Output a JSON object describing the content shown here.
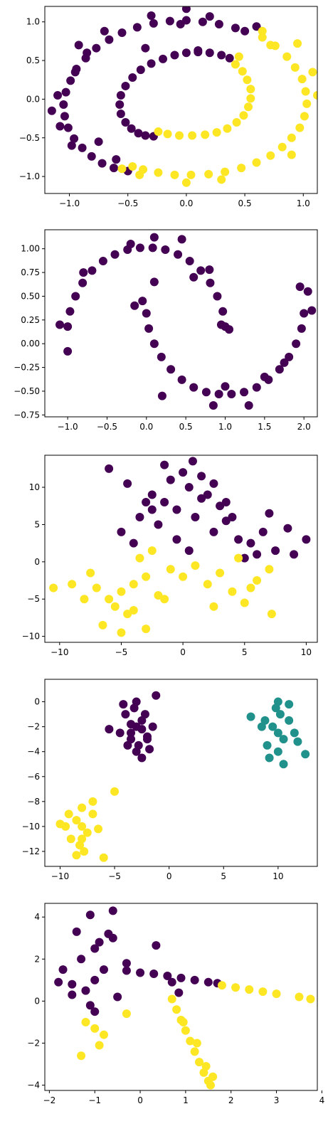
{
  "colors": {
    "class_0": "#440154",
    "class_1": "#21918c",
    "class_2": "#fde725"
  },
  "chart_data": [
    {
      "type": "scatter",
      "shape": "circles",
      "title": "",
      "xlabel": "",
      "ylabel": "",
      "grid": false,
      "xlim": [
        -1.21,
        1.12
      ],
      "ylim": [
        -1.22,
        1.2
      ],
      "xticks": [
        -1.0,
        -0.5,
        0.0,
        0.5,
        1.0
      ],
      "xtick_labels": [
        "−1.0",
        "−0.5",
        "0.0",
        "0.5",
        "1.0"
      ],
      "yticks": [
        -1.0,
        -0.5,
        0.0,
        0.5,
        1.0
      ],
      "ytick_labels": [
        "−1.0",
        "−0.5",
        "0.0",
        "0.5",
        "1.0"
      ],
      "series": [
        {
          "class": 0,
          "color": "#440154",
          "x": [
            0.5,
            0.42,
            0.28,
            0.14,
            0.0,
            -0.14,
            -0.28,
            -0.42,
            -0.55,
            -0.66,
            -0.77,
            -0.86,
            -0.94,
            -0.99,
            -1.03,
            -1.05,
            -1.04,
            -1.01,
            -0.96,
            -0.89,
            -0.81,
            -0.72,
            -0.62,
            -0.5,
            0.37,
            0.3,
            0.2,
            0.1,
            0.0,
            -0.1,
            -0.2,
            -0.3,
            -0.39,
            -0.46,
            -0.52,
            -0.56,
            -0.57,
            -0.56,
            -0.52,
            -0.47,
            -0.41,
            -0.35,
            -0.28,
            0.6,
            0.0,
            -0.85,
            -0.7,
            -0.3,
            0.2,
            -1.1,
            -1.15,
            -0.98,
            -0.75,
            -0.95,
            -0.6,
            -0.35,
            0.1,
            -0.05,
            -1.08,
            -0.92
          ],
          "y": [
            0.88,
            0.92,
            0.97,
            1.0,
            1.02,
            1.01,
            0.98,
            0.93,
            0.86,
            0.77,
            0.66,
            0.53,
            0.39,
            0.24,
            0.09,
            -0.07,
            -0.22,
            -0.37,
            -0.51,
            -0.63,
            -0.74,
            -0.83,
            -0.89,
            -0.93,
            0.53,
            0.57,
            0.6,
            0.61,
            0.6,
            0.57,
            0.52,
            0.46,
            0.38,
            0.28,
            0.17,
            0.05,
            -0.07,
            -0.19,
            -0.3,
            -0.38,
            -0.44,
            -0.47,
            -0.48,
            0.94,
            1.17,
            0.6,
            0.88,
            1.08,
            1.07,
            0.05,
            -0.15,
            -0.6,
            -0.55,
            0.35,
            -0.78,
            0.66,
            0.63,
            0.97,
            -0.35,
            0.7
          ]
        },
        {
          "class": 2,
          "color": "#fde725",
          "x": [
            0.65,
            0.76,
            0.86,
            0.93,
            0.99,
            1.02,
            1.03,
            1.01,
            0.97,
            0.9,
            0.82,
            0.72,
            0.6,
            0.47,
            0.33,
            0.19,
            0.04,
            -0.1,
            -0.24,
            -0.37,
            -0.46,
            0.42,
            0.48,
            0.52,
            0.55,
            0.55,
            0.53,
            0.49,
            0.43,
            0.35,
            0.26,
            0.16,
            0.05,
            -0.06,
            -0.16,
            -0.24,
            0.72,
            1.12,
            1.08,
            0.9,
            0.3,
            -0.4,
            -0.55,
            0.65,
            0.45,
            0.95,
            0.0
          ],
          "y": [
            0.8,
            0.69,
            0.55,
            0.41,
            0.26,
            0.1,
            -0.06,
            -0.22,
            -0.37,
            -0.5,
            -0.62,
            -0.73,
            -0.82,
            -0.89,
            -0.94,
            -0.97,
            -0.98,
            -0.98,
            -0.95,
            -0.91,
            -0.87,
            0.45,
            0.36,
            0.25,
            0.13,
            0.01,
            -0.1,
            -0.21,
            -0.3,
            -0.38,
            -0.43,
            -0.46,
            -0.47,
            -0.47,
            -0.45,
            -0.42,
            0.7,
            0.05,
            0.35,
            -0.72,
            -1.04,
            -0.98,
            -0.9,
            0.88,
            0.55,
            0.72,
            -1.08
          ]
        }
      ]
    },
    {
      "type": "scatter",
      "shape": "moons",
      "title": "",
      "xlabel": "",
      "ylabel": "",
      "grid": false,
      "xlim": [
        -1.29,
        2.17
      ],
      "ylim": [
        -0.77,
        1.2
      ],
      "xticks": [
        -1.0,
        -0.5,
        0.0,
        0.5,
        1.0,
        1.5,
        2.0
      ],
      "xtick_labels": [
        "−1.0",
        "−0.5",
        "0.0",
        "0.5",
        "1.0",
        "1.5",
        "2.0"
      ],
      "yticks": [
        -0.75,
        -0.5,
        -0.25,
        0.0,
        0.25,
        0.5,
        0.75,
        1.0
      ],
      "ytick_labels": [
        "−0.75",
        "−0.50",
        "−0.25",
        "0.00",
        "0.25",
        "0.50",
        "0.75",
        "1.00"
      ],
      "series": [
        {
          "class": 0,
          "color": "#440154",
          "x": [
            -1.0,
            -0.97,
            -0.9,
            -0.81,
            -0.69,
            -0.55,
            -0.4,
            -0.24,
            -0.08,
            0.08,
            0.24,
            0.4,
            0.55,
            0.69,
            0.81,
            0.9,
            0.97,
            1.0,
            0.0,
            0.03,
            0.1,
            0.19,
            0.31,
            0.45,
            0.6,
            0.76,
            0.92,
            1.08,
            1.24,
            1.4,
            1.55,
            1.69,
            1.81,
            1.9,
            1.97,
            2.0,
            -1.1,
            -0.8,
            -0.2,
            0.1,
            0.45,
            0.8,
            0.95,
            1.05,
            -0.15,
            0.2,
            0.85,
            1.3,
            1.75,
            2.05,
            2.1,
            1.95,
            -1.0,
            0.1,
            -0.05,
            0.6,
            1.0,
            1.5
          ],
          "y": [
            0.18,
            0.34,
            0.5,
            0.64,
            0.77,
            0.87,
            0.94,
            0.99,
            1.01,
            1.01,
            0.99,
            0.94,
            0.87,
            0.77,
            0.64,
            0.5,
            0.34,
            0.18,
            0.32,
            0.16,
            0.0,
            -0.14,
            -0.27,
            -0.38,
            -0.46,
            -0.51,
            -0.53,
            -0.53,
            -0.51,
            -0.46,
            -0.38,
            -0.27,
            -0.14,
            0.0,
            0.16,
            0.32,
            0.2,
            0.75,
            1.05,
            1.12,
            1.1,
            0.78,
            0.2,
            0.15,
            0.4,
            -0.55,
            -0.65,
            -0.65,
            -0.2,
            0.55,
            0.35,
            0.6,
            -0.08,
            0.65,
            0.45,
            0.7,
            -0.45,
            -0.35
          ]
        }
      ]
    },
    {
      "type": "scatter",
      "shape": "blobs",
      "title": "",
      "xlabel": "",
      "ylabel": "",
      "grid": false,
      "xlim": [
        -11.2,
        10.9
      ],
      "ylim": [
        -10.8,
        14.3
      ],
      "xticks": [
        -10,
        -5,
        0,
        5,
        10
      ],
      "xtick_labels": [
        "−10",
        "−5",
        "0",
        "5",
        "10"
      ],
      "yticks": [
        -10,
        -5,
        0,
        5,
        10
      ],
      "ytick_labels": [
        "−10",
        "−5",
        "0",
        "5",
        "10"
      ],
      "series": [
        {
          "class": 0,
          "color": "#440154",
          "x": [
            -1.5,
            -2.5,
            -0.5,
            0.5,
            -3.5,
            -1.0,
            1.5,
            -2.0,
            0.0,
            -3.0,
            1.0,
            2.5,
            3.5,
            4.5,
            5.5,
            6.5,
            7.5,
            8.5,
            10.0,
            2.0,
            3.0,
            4.0,
            5.0,
            6.0,
            -4.5,
            -6.0,
            -5.0,
            -4.0,
            1.5,
            -1.5,
            2.5,
            -0.5,
            0.5,
            3.5,
            -2.5,
            0.8,
            9.0,
            7.0
          ],
          "y": [
            8.0,
            9.0,
            7.0,
            10.0,
            6.0,
            11.0,
            8.5,
            5.0,
            12.0,
            8.0,
            6.0,
            4.0,
            5.5,
            3.0,
            2.5,
            4.0,
            1.5,
            4.5,
            3.0,
            9.0,
            7.5,
            6.0,
            0.5,
            1.0,
            10.5,
            12.5,
            4.0,
            2.5,
            11.5,
            13.0,
            10.5,
            3.0,
            1.5,
            8.0,
            7.0,
            13.5,
            1.0,
            6.5
          ]
        },
        {
          "class": 2,
          "color": "#fde725",
          "x": [
            -5.0,
            -4.0,
            -6.0,
            -3.0,
            -7.0,
            -5.5,
            -2.0,
            -4.5,
            -8.0,
            -1.0,
            0.0,
            1.0,
            2.0,
            3.0,
            4.0,
            5.0,
            6.0,
            7.0,
            -9.0,
            -10.5,
            -3.5,
            -6.5,
            -2.5,
            -5.0,
            -3.0,
            4.5,
            7.2,
            -7.5,
            -4.0,
            -1.5,
            2.5,
            5.5
          ],
          "y": [
            -4.0,
            -3.0,
            -5.0,
            -2.0,
            -3.5,
            -6.0,
            -4.5,
            -7.0,
            -5.0,
            -1.0,
            -2.0,
            -0.5,
            -3.0,
            -1.5,
            -4.0,
            -5.5,
            -2.5,
            -1.0,
            -3.0,
            -3.5,
            0.5,
            -8.5,
            1.5,
            -9.5,
            -9.0,
            0.5,
            -7.0,
            -1.5,
            -6.5,
            -5.0,
            -6.0,
            -3.5
          ]
        }
      ]
    },
    {
      "type": "scatter",
      "shape": "blobs",
      "title": "",
      "xlabel": "",
      "ylabel": "",
      "grid": false,
      "xlim": [
        -11.4,
        13.6
      ],
      "ylim": [
        -13.2,
        1.8
      ],
      "xticks": [
        -10,
        -5,
        0,
        5,
        10
      ],
      "xtick_labels": [
        "−10",
        "−5",
        "0",
        "5",
        "10"
      ],
      "yticks": [
        -12,
        -10,
        -8,
        -6,
        -4,
        -2,
        0
      ],
      "ytick_labels": [
        "−12",
        "−10",
        "−8",
        "−6",
        "−4",
        "−2",
        "0"
      ],
      "series": [
        {
          "class": 0,
          "color": "#440154",
          "x": [
            -3.0,
            -2.5,
            -3.5,
            -2.0,
            -4.0,
            -2.8,
            -3.2,
            -1.5,
            -4.5,
            -3.0,
            -2.2,
            -3.8,
            -1.2,
            -5.5,
            -3.0,
            -2.5,
            -1.8,
            -4.2,
            -3.5,
            -2.0,
            -2.5,
            -3.5
          ],
          "y": [
            -2.0,
            -1.5,
            -2.5,
            -3.0,
            -1.0,
            -3.5,
            -0.5,
            -2.0,
            -2.5,
            -4.0,
            -1.0,
            -3.5,
            0.5,
            -2.2,
            0.0,
            -4.5,
            -3.8,
            -0.2,
            -1.8,
            -2.8,
            -2.2,
            -3.0
          ]
        },
        {
          "class": 1,
          "color": "#21918c",
          "x": [
            10.0,
            9.5,
            10.5,
            11.0,
            9.0,
            10.2,
            11.5,
            8.5,
            10.0,
            9.8,
            11.8,
            7.5,
            12.5,
            10.5,
            9.2,
            11.0,
            10.0,
            8.8
          ],
          "y": [
            -2.5,
            -2.0,
            -3.0,
            -1.5,
            -3.5,
            -1.0,
            -2.5,
            -2.0,
            -4.0,
            -0.5,
            -3.2,
            -1.2,
            -4.2,
            -5.0,
            -4.5,
            -0.2,
            0.0,
            -1.5
          ]
        },
        {
          "class": 2,
          "color": "#fde725",
          "x": [
            -8.0,
            -8.5,
            -7.5,
            -9.0,
            -7.0,
            -8.2,
            -9.5,
            -6.5,
            -8.0,
            -7.8,
            -10.0,
            -5.0,
            -6.0,
            -8.5,
            -7.0,
            -9.2,
            -8.0
          ],
          "y": [
            -10.0,
            -9.5,
            -10.5,
            -11.0,
            -9.0,
            -11.5,
            -10.0,
            -10.2,
            -8.5,
            -12.0,
            -9.8,
            -7.2,
            -12.5,
            -12.3,
            -8.0,
            -9.0,
            -11.0
          ]
        }
      ]
    },
    {
      "type": "scatter",
      "shape": "anisotropic",
      "title": "",
      "xlabel": "",
      "ylabel": "",
      "grid": false,
      "xlim": [
        -2.1,
        3.9
      ],
      "ylim": [
        -4.25,
        4.65
      ],
      "xticks": [
        -2,
        -1,
        0,
        1,
        2,
        3,
        4
      ],
      "xtick_labels": [
        "−2",
        "−1",
        "0",
        "1",
        "2",
        "3",
        "4"
      ],
      "yticks": [
        -4,
        -2,
        0,
        2,
        4
      ],
      "ytick_labels": [
        "−4",
        "−2",
        "0",
        "2",
        "4"
      ],
      "series": [
        {
          "class": 0,
          "color": "#440154",
          "x": [
            -1.0,
            -1.2,
            -0.8,
            -1.5,
            -0.5,
            -1.3,
            -0.9,
            -1.7,
            -1.0,
            -0.7,
            -1.1,
            -0.6,
            -1.8,
            -1.4,
            -0.3,
            0.0,
            0.3,
            0.6,
            0.9,
            1.2,
            1.5,
            1.7,
            0.35,
            0.7,
            0.85,
            -0.6,
            -0.3,
            -1.0,
            -1.1,
            -1.5
          ],
          "y": [
            1.0,
            0.5,
            1.5,
            0.8,
            0.2,
            2.0,
            2.8,
            1.5,
            -0.5,
            3.2,
            4.1,
            4.3,
            0.9,
            3.3,
            1.45,
            1.35,
            1.3,
            1.2,
            1.1,
            1.0,
            0.9,
            0.85,
            2.65,
            0.9,
            0.4,
            3.0,
            1.8,
            2.5,
            -0.2,
            0.3
          ]
        },
        {
          "class": 2,
          "color": "#fde725",
          "x": [
            0.7,
            0.8,
            0.9,
            1.0,
            1.1,
            1.2,
            1.3,
            1.4,
            1.5,
            1.55,
            1.6,
            1.8,
            2.1,
            2.4,
            2.7,
            3.0,
            3.5,
            3.75,
            -1.2,
            -1.0,
            -0.8,
            -1.3,
            -0.9,
            -0.3,
            0.95,
            1.25,
            1.45
          ],
          "y": [
            0.1,
            -0.4,
            -0.9,
            -1.4,
            -1.9,
            -2.4,
            -2.9,
            -3.4,
            -3.8,
            -4.0,
            -3.6,
            0.75,
            0.65,
            0.55,
            0.45,
            0.35,
            0.2,
            0.1,
            -1.0,
            -1.3,
            -1.6,
            -2.6,
            -2.1,
            -0.6,
            -1.0,
            -2.0,
            -3.1
          ]
        }
      ]
    }
  ]
}
